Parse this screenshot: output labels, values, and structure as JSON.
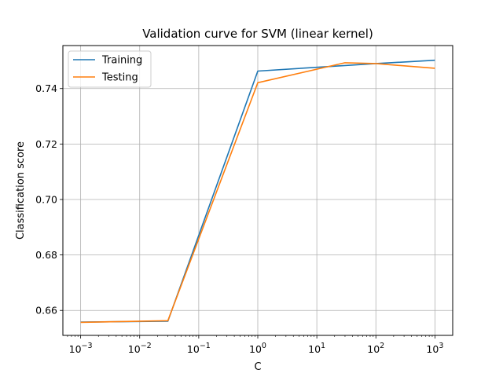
{
  "chart_data": {
    "type": "line",
    "title": "Validation curve for SVM (linear kernel)",
    "xlabel": "C",
    "ylabel": "Classification score",
    "xscale": "log",
    "xlim": [
      0.0005,
      2000
    ],
    "ylim": [
      0.651,
      0.7555
    ],
    "x": [
      0.001,
      0.03,
      1,
      30,
      100,
      1000
    ],
    "xticks": [
      {
        "value": 0.001,
        "base": "10",
        "exp": "−3"
      },
      {
        "value": 0.01,
        "base": "10",
        "exp": "−2"
      },
      {
        "value": 0.1,
        "base": "10",
        "exp": "−1"
      },
      {
        "value": 1,
        "base": "10",
        "exp": "0"
      },
      {
        "value": 10,
        "base": "10",
        "exp": "1"
      },
      {
        "value": 100,
        "base": "10",
        "exp": "2"
      },
      {
        "value": 1000,
        "base": "10",
        "exp": "3"
      }
    ],
    "yticks": [
      {
        "value": 0.66,
        "label": "0.66"
      },
      {
        "value": 0.68,
        "label": "0.68"
      },
      {
        "value": 0.7,
        "label": "0.70"
      },
      {
        "value": 0.72,
        "label": "0.72"
      },
      {
        "value": 0.74,
        "label": "0.74"
      }
    ],
    "grid": true,
    "legend_position": "top-left",
    "series": [
      {
        "name": "Training",
        "color": "#1f77b4",
        "values": [
          0.6558,
          0.6561,
          0.7463,
          0.7483,
          0.749,
          0.7502
        ]
      },
      {
        "name": "Testing",
        "color": "#ff7f0e",
        "values": [
          0.6557,
          0.6563,
          0.7421,
          0.7493,
          0.749,
          0.7473
        ]
      }
    ]
  }
}
